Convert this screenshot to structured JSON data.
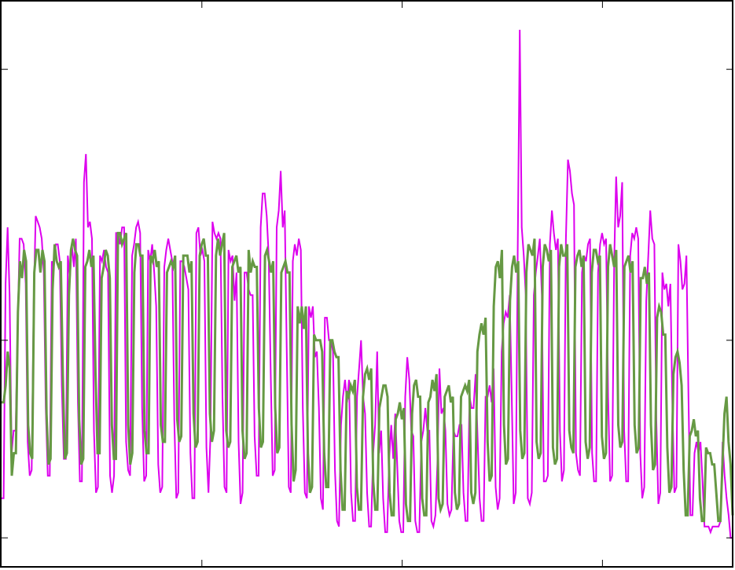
{
  "chart_data": {
    "type": "line",
    "title": "",
    "xlabel": "",
    "ylabel": "",
    "xlim": [
      0,
      365
    ],
    "ylim": [
      0,
      100
    ],
    "x_ticks": [
      100,
      200,
      300
    ],
    "y_ticks": [
      5,
      40,
      88
    ],
    "grid": false,
    "legend": "none",
    "series": [
      {
        "color": "#dd00ee",
        "stroke_width": 2,
        "values": [
          12,
          12,
          50,
          60,
          48,
          20,
          24,
          24,
          42,
          58,
          58,
          57,
          50,
          22,
          16,
          17,
          47,
          62,
          61,
          60,
          58,
          52,
          28,
          16,
          16,
          54,
          53,
          57,
          57,
          54,
          32,
          19,
          19,
          55,
          51,
          57,
          53,
          58,
          29,
          15,
          15,
          68,
          73,
          60,
          61,
          58,
          24,
          13,
          14,
          55,
          54,
          56,
          53,
          52,
          16,
          13,
          16,
          59,
          59,
          57,
          60,
          60,
          22,
          17,
          16,
          55,
          57,
          60,
          61,
          59,
          28,
          15,
          16,
          56,
          54,
          57,
          52,
          46,
          18,
          13,
          14,
          53,
          56,
          58,
          56,
          54,
          26,
          12,
          13,
          54,
          54,
          53,
          51,
          49,
          20,
          12,
          12,
          59,
          60,
          55,
          56,
          54,
          21,
          13,
          23,
          61,
          59,
          58,
          59,
          58,
          30,
          14,
          13,
          56,
          54,
          55,
          47,
          52,
          22,
          11,
          13,
          52,
          52,
          49,
          48,
          48,
          23,
          16,
          16,
          60,
          66,
          66,
          62,
          55,
          34,
          16,
          17,
          60,
          63,
          70,
          60,
          63,
          38,
          14,
          13,
          54,
          57,
          55,
          58,
          56,
          28,
          13,
          12,
          46,
          44,
          46,
          37,
          38,
          28,
          12,
          10,
          44,
          44,
          40,
          40,
          38,
          17,
          8,
          7,
          25,
          30,
          33,
          29,
          33,
          13,
          8,
          8,
          30,
          35,
          40,
          30,
          27,
          13,
          7,
          7,
          20,
          25,
          38,
          20,
          24,
          12,
          6,
          6,
          19,
          25,
          19,
          27,
          18,
          8,
          6,
          6,
          30,
          37,
          33,
          24,
          23,
          8,
          6,
          6,
          22,
          24,
          28,
          24,
          24,
          8,
          7,
          9,
          18,
          35,
          27,
          28,
          24,
          11,
          9,
          10,
          24,
          23,
          23,
          25,
          25,
          13,
          8,
          8,
          30,
          28,
          28,
          34,
          23,
          12,
          8,
          8,
          30,
          30,
          32,
          29,
          35,
          14,
          10,
          12,
          38,
          43,
          45,
          44,
          48,
          30,
          11,
          13,
          56,
          95,
          60,
          55,
          48,
          12,
          11,
          13,
          48,
          52,
          55,
          58,
          48,
          15,
          15,
          16,
          57,
          63,
          59,
          56,
          58,
          24,
          15,
          17,
          58,
          72,
          70,
          66,
          64,
          20,
          17,
          16,
          52,
          55,
          54,
          57,
          58,
          20,
          15,
          15,
          52,
          57,
          59,
          57,
          58,
          30,
          15,
          16,
          54,
          69,
          60,
          62,
          68,
          24,
          15,
          15,
          55,
          59,
          58,
          60,
          58,
          20,
          12,
          14,
          47,
          55,
          63,
          58,
          57,
          26,
          11,
          13,
          52,
          49,
          50,
          46,
          50,
          28,
          13,
          14,
          57,
          54,
          49,
          50,
          55,
          30,
          9,
          9,
          20,
          22,
          20,
          22,
          15,
          7,
          7,
          7,
          6,
          7,
          7,
          7,
          7,
          8,
          22,
          16,
          12,
          9,
          5,
          5
        ]
      },
      {
        "color": "#669944",
        "stroke_width": 3,
        "values": [
          29,
          29,
          32,
          38,
          35,
          16,
          20,
          20,
          45,
          54,
          51,
          56,
          54,
          25,
          20,
          19,
          52,
          56,
          56,
          52,
          56,
          54,
          27,
          18,
          19,
          49,
          57,
          54,
          53,
          54,
          34,
          19,
          20,
          48,
          56,
          58,
          56,
          55,
          26,
          18,
          19,
          53,
          54,
          56,
          53,
          55,
          34,
          20,
          20,
          51,
          53,
          56,
          55,
          51,
          25,
          19,
          19,
          59,
          59,
          57,
          58,
          59,
          25,
          18,
          20,
          52,
          57,
          57,
          55,
          55,
          24,
          20,
          20,
          55,
          54,
          56,
          53,
          54,
          25,
          22,
          22,
          52,
          53,
          54,
          53,
          55,
          26,
          22,
          23,
          55,
          55,
          55,
          52,
          54,
          27,
          21,
          22,
          55,
          57,
          58,
          55,
          55,
          27,
          22,
          24,
          55,
          58,
          55,
          57,
          59,
          24,
          21,
          22,
          53,
          54,
          55,
          52,
          53,
          24,
          19,
          20,
          56,
          52,
          54,
          53,
          53,
          28,
          21,
          22,
          55,
          56,
          54,
          52,
          54,
          28,
          20,
          21,
          52,
          53,
          54,
          52,
          52,
          25,
          15,
          17,
          46,
          43,
          46,
          42,
          46,
          20,
          13,
          14,
          41,
          40,
          40,
          40,
          38,
          20,
          14,
          14,
          40,
          40,
          38,
          37,
          37,
          17,
          10,
          10,
          31,
          30,
          32,
          31,
          33,
          14,
          10,
          10,
          30,
          34,
          35,
          33,
          35,
          15,
          10,
          10,
          28,
          30,
          32,
          32,
          30,
          13,
          9,
          9,
          26,
          27,
          29,
          26,
          28,
          11,
          8,
          8,
          27,
          32,
          33,
          30,
          30,
          12,
          9,
          9,
          29,
          30,
          33,
          31,
          34,
          12,
          10,
          11,
          30,
          31,
          32,
          29,
          30,
          13,
          10,
          11,
          30,
          31,
          32,
          31,
          33,
          13,
          11,
          13,
          38,
          41,
          43,
          41,
          44,
          22,
          15,
          16,
          46,
          53,
          54,
          51,
          56,
          25,
          18,
          19,
          47,
          53,
          55,
          52,
          54,
          24,
          19,
          20,
          52,
          57,
          56,
          55,
          58,
          22,
          19,
          20,
          53,
          57,
          56,
          54,
          56,
          21,
          18,
          19,
          53,
          57,
          55,
          55,
          57,
          24,
          21,
          20,
          53,
          55,
          56,
          53,
          55,
          22,
          19,
          21,
          52,
          56,
          56,
          54,
          55,
          23,
          19,
          20,
          53,
          57,
          55,
          53,
          56,
          25,
          21,
          22,
          53,
          54,
          55,
          52,
          54,
          25,
          20,
          21,
          51,
          51,
          53,
          50,
          52,
          25,
          17,
          18,
          44,
          46,
          45,
          41,
          41,
          21,
          13,
          14,
          34,
          37,
          38,
          36,
          32,
          17,
          9,
          9,
          23,
          24,
          26,
          23,
          24,
          12,
          8,
          8,
          21,
          20,
          20,
          18,
          18,
          13,
          8,
          8,
          18,
          27,
          30,
          22,
          18,
          9
        ]
      }
    ]
  }
}
